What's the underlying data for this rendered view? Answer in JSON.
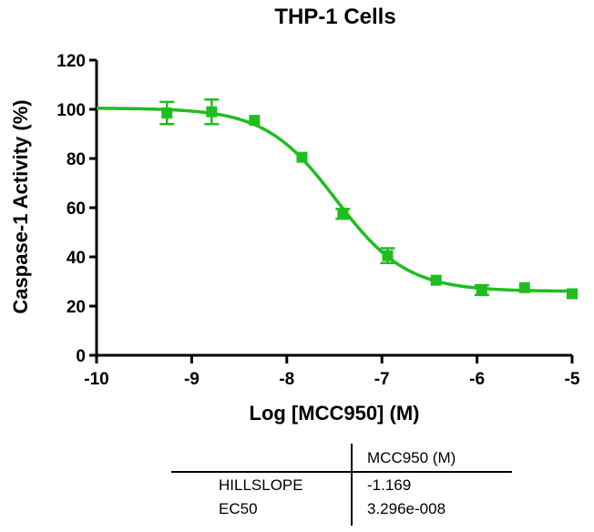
{
  "chart_data": {
    "type": "scatter",
    "title": "THP-1 Cells",
    "xlabel": "Log [MCC950] (M)",
    "ylabel": "Caspase-1 Activity (%)",
    "xlim": [
      -10,
      -5
    ],
    "ylim": [
      0,
      120
    ],
    "xticks": [
      -10,
      -9,
      -8,
      -7,
      -6,
      -5
    ],
    "yticks": [
      0,
      20,
      40,
      60,
      80,
      100,
      120
    ],
    "xtick_labels": [
      "-10",
      "-9",
      "-8",
      "-7",
      "-6",
      "-5"
    ],
    "ytick_labels": [
      "0",
      "20",
      "40",
      "60",
      "80",
      "100",
      "120"
    ],
    "grid": false,
    "series": [
      {
        "color": "#1fbe1f",
        "marker": "square",
        "x": [
          -9.26,
          -8.79,
          -8.34,
          -7.84,
          -7.41,
          -6.94,
          -6.43,
          -5.95,
          -5.5,
          -5.0
        ],
        "y": [
          98.5,
          99,
          95.5,
          80.5,
          57.5,
          40.5,
          30.5,
          26.5,
          27.5,
          25
        ],
        "error": [
          4.5,
          5,
          0,
          0,
          2,
          3,
          0,
          2,
          0,
          0
        ]
      }
    ],
    "fit": {
      "model": "sigmoidal dose-response (variable slope)",
      "bottom": 26,
      "top": 100.5,
      "log_ec50": -7.482,
      "hillslope": -1.169,
      "color": "#1fbe1f"
    }
  },
  "results_table": {
    "column_header": "MCC950 (M)",
    "rows": [
      {
        "label": "HILLSLOPE",
        "value": "-1.169"
      },
      {
        "label": "EC50",
        "value": "3.296e-008"
      }
    ]
  }
}
